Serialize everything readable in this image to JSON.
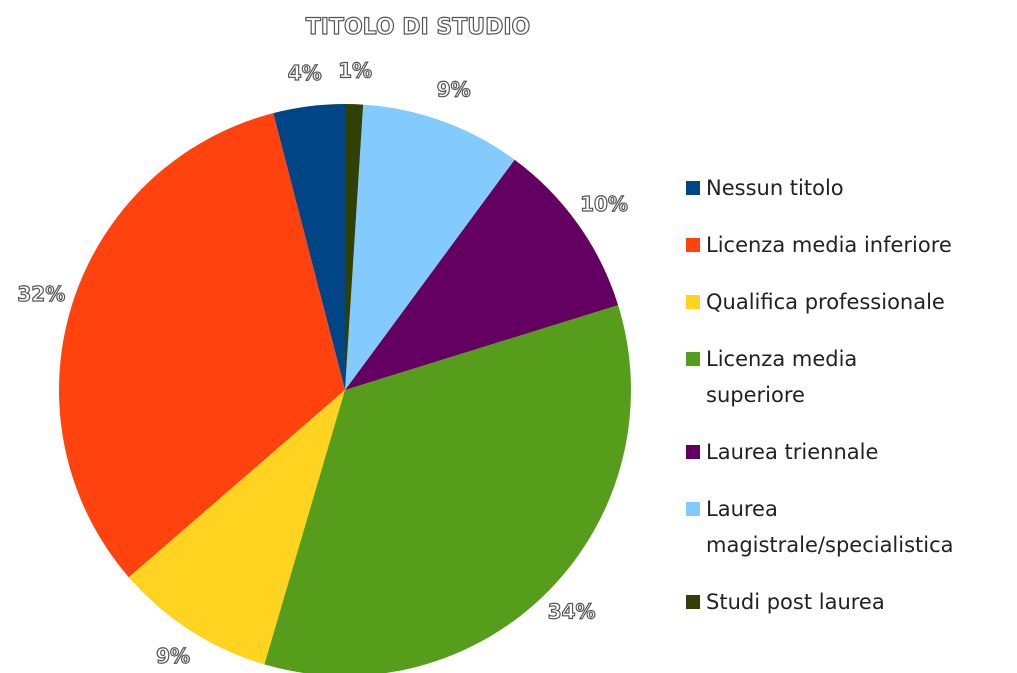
{
  "chart_data": {
    "type": "pie",
    "title": "TITOLO DI STUDIO",
    "categories": [
      "Nessun titolo",
      "Licenza media inferiore",
      "Qualifica professionale",
      "Licenza media superiore",
      "Laurea triennale",
      "Laurea magistrale/specialistica",
      "Studi post laurea"
    ],
    "values": [
      4,
      32,
      9,
      34,
      10,
      9,
      1
    ],
    "value_labels": [
      "4%",
      "32%",
      "9%",
      "34%",
      "10%",
      "9%",
      "1%"
    ],
    "colors": [
      "#004586",
      "#ff420e",
      "#ffd320",
      "#579d1c",
      "#650063",
      "#83caff",
      "#314004"
    ],
    "legend": "right"
  }
}
